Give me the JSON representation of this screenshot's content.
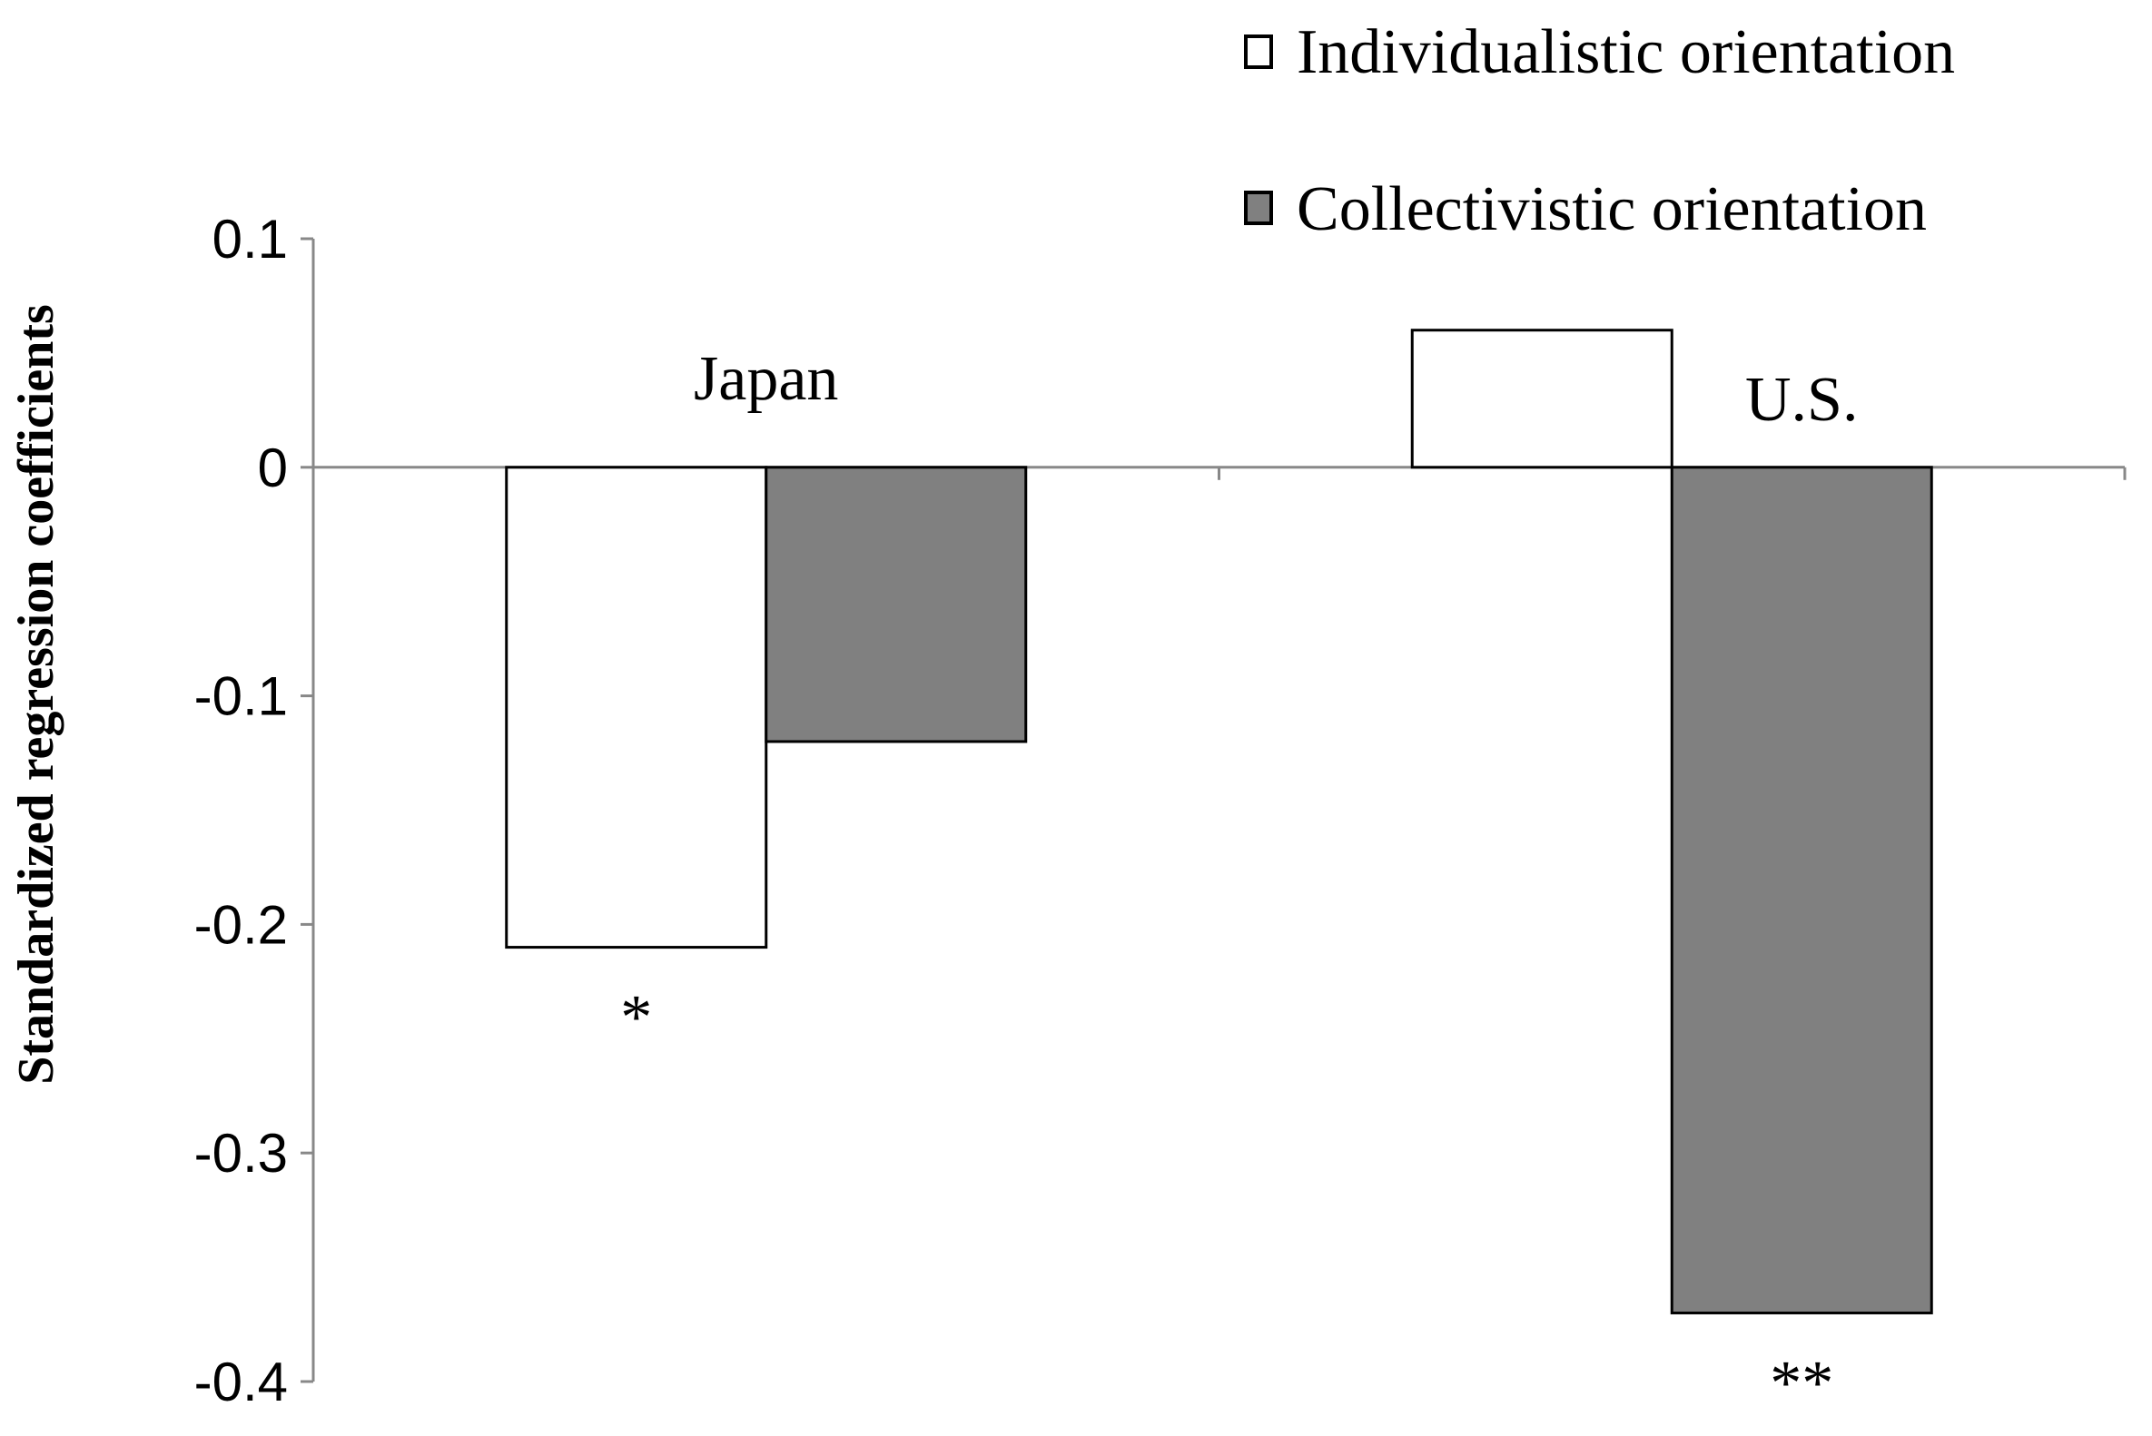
{
  "chart_data": {
    "type": "bar",
    "title": "",
    "xlabel": "",
    "ylabel": "Standardized regression coefficients",
    "ylim": [
      -0.4,
      0.1
    ],
    "yticks": [
      "0.1",
      "0",
      "-0.1",
      "-0.2",
      "-0.3",
      "-0.4"
    ],
    "grid": false,
    "legend_position": "top-right",
    "categories": [
      "Japan",
      "U.S."
    ],
    "series": [
      {
        "name": "Individualistic orientation",
        "values": [
          -0.21,
          0.06
        ],
        "color": "#ffffff",
        "significance": [
          "*",
          ""
        ]
      },
      {
        "name": "Collectivistic orientation",
        "values": [
          -0.12,
          -0.37
        ],
        "color": "#808080",
        "significance": [
          "",
          "**"
        ]
      }
    ]
  }
}
